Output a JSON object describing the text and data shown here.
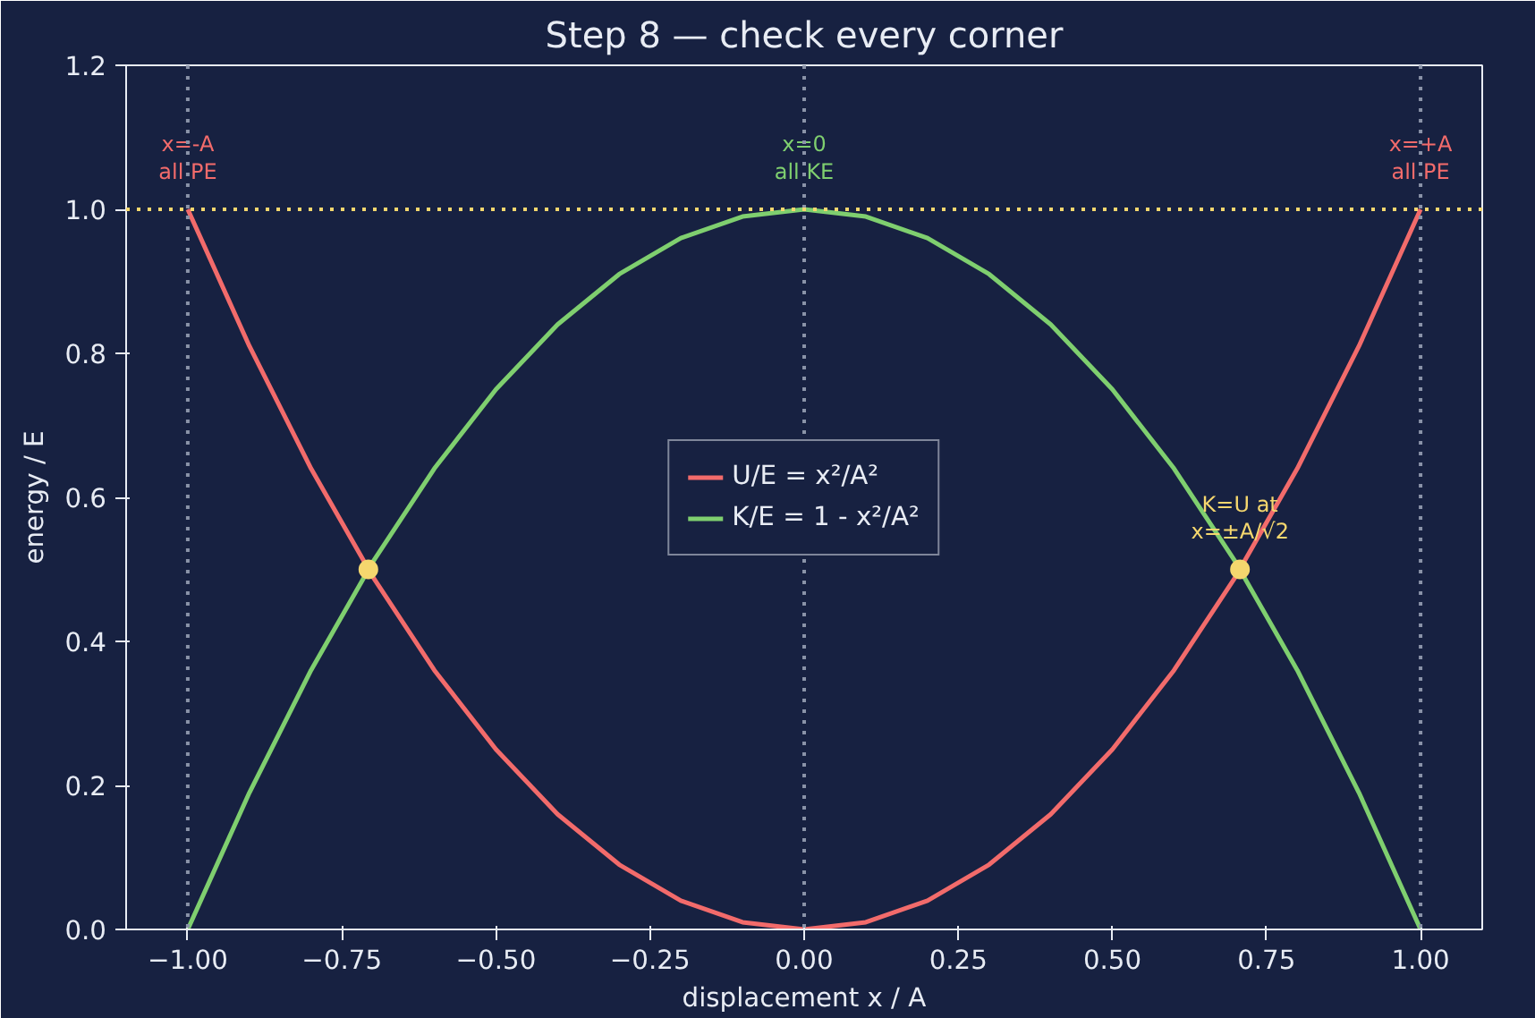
{
  "chart_data": {
    "type": "line",
    "title": "Step 8 — check every corner",
    "xlabel": "displacement x / A",
    "ylabel": "energy / E",
    "x": [
      -1,
      -0.9,
      -0.8,
      -0.7,
      -0.6,
      -0.5,
      -0.4,
      -0.3,
      -0.2,
      -0.1,
      0,
      0.1,
      0.2,
      0.3,
      0.4,
      0.5,
      0.6,
      0.7,
      0.8,
      0.9,
      1
    ],
    "series": [
      {
        "name": "U/E = x²/A²",
        "color": "#f26b6b",
        "values": [
          1,
          0.81,
          0.64,
          0.49,
          0.36,
          0.25,
          0.16,
          0.09,
          0.04,
          0.01,
          0,
          0.01,
          0.04,
          0.09,
          0.16,
          0.25,
          0.36,
          0.49,
          0.64,
          0.81,
          1
        ]
      },
      {
        "name": "K/E = 1 - x²/A²",
        "color": "#7fcf6f",
        "values": [
          0,
          0.19,
          0.36,
          0.51,
          0.64,
          0.75,
          0.84,
          0.91,
          0.96,
          0.99,
          1,
          0.99,
          0.96,
          0.91,
          0.84,
          0.75,
          0.64,
          0.51,
          0.36,
          0.19,
          0
        ]
      },
      {
        "type": "scatter",
        "marker": "circle",
        "color": "#f5d76e",
        "x": [
          -0.707,
          0.707
        ],
        "values": [
          0.5,
          0.5
        ]
      }
    ],
    "xlim": [
      -1.1,
      1.1
    ],
    "ylim": [
      0,
      1.2
    ],
    "xticks": [
      {
        "value": -1,
        "label": "−1.00"
      },
      {
        "value": -0.75,
        "label": "−0.75"
      },
      {
        "value": -0.5,
        "label": "−0.50"
      },
      {
        "value": -0.25,
        "label": "−0.25"
      },
      {
        "value": 0,
        "label": "0.00"
      },
      {
        "value": 0.25,
        "label": "0.25"
      },
      {
        "value": 0.5,
        "label": "0.50"
      },
      {
        "value": 0.75,
        "label": "0.75"
      },
      {
        "value": 1,
        "label": "1.00"
      }
    ],
    "yticks": [
      {
        "value": 0,
        "label": "0.0"
      },
      {
        "value": 0.2,
        "label": "0.2"
      },
      {
        "value": 0.4,
        "label": "0.4"
      },
      {
        "value": 0.6,
        "label": "0.6"
      },
      {
        "value": 0.8,
        "label": "0.8"
      },
      {
        "value": 1,
        "label": "1.0"
      },
      {
        "value": 1.2,
        "label": "1.2"
      }
    ],
    "ref_lines": [
      {
        "axis": "x",
        "value": -1,
        "color": "#8a93a8",
        "line_style": "dotted"
      },
      {
        "axis": "x",
        "value": 0,
        "color": "#8a93a8",
        "line_style": "dotted"
      },
      {
        "axis": "x",
        "value": 1,
        "color": "#8a93a8",
        "line_style": "dotted"
      },
      {
        "axis": "y",
        "value": 1,
        "color": "#f5d76e",
        "line_style": "dotted"
      }
    ],
    "annotations": [
      {
        "text": "x=-A\nall PE",
        "x": -1,
        "y": 1
      },
      {
        "text": "x=0\nall KE",
        "x": 0,
        "y": 1
      },
      {
        "text": "x=+A\nall PE",
        "x": 1,
        "y": 1
      },
      {
        "text": "K=U at\nx=±A/√2",
        "x": 0.707,
        "y": 0.5
      }
    ],
    "legend": "center",
    "grid": false,
    "marker": "none",
    "line_style": "solid"
  }
}
